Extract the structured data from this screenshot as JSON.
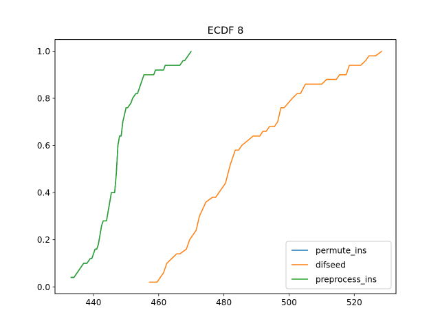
{
  "chart_data": {
    "type": "line",
    "title": "ECDF 8",
    "xlabel": "",
    "ylabel": "",
    "xlim": [
      428.2,
      532.8
    ],
    "ylim": [
      -0.029,
      1.049
    ],
    "xticks": [
      440,
      460,
      480,
      500,
      520
    ],
    "yticks": [
      0.0,
      0.2,
      0.4,
      0.6,
      0.8,
      1.0
    ],
    "ytick_labels": [
      "0.0",
      "0.2",
      "0.4",
      "0.6",
      "0.8",
      "1.0"
    ],
    "grid": false,
    "legend_position": "lower-right",
    "series": [
      {
        "name": "permute_ins",
        "color": "#1f77b4",
        "x": [
          433.0,
          434.0,
          435.0,
          436.0,
          437.0,
          438.0,
          439.0,
          439.5,
          440.5,
          441.0,
          441.5,
          442.0,
          442.5,
          443.0,
          444.0,
          445.0,
          445.5,
          446.5,
          447.0,
          447.5,
          448.0,
          448.5,
          449.0,
          450.0,
          450.5,
          451.5,
          452.0,
          453.0,
          453.5,
          454.0,
          455.5,
          456.5,
          457.0,
          458.0,
          458.5,
          459.0,
          459.5,
          460.5,
          461.5,
          462.0,
          464.5,
          465.0,
          466.5,
          467.5,
          468.0,
          469.0,
          470.0
        ],
        "y": [
          0.04,
          0.04,
          0.06,
          0.08,
          0.1,
          0.1,
          0.12,
          0.12,
          0.16,
          0.16,
          0.18,
          0.22,
          0.26,
          0.28,
          0.28,
          0.36,
          0.4,
          0.4,
          0.48,
          0.6,
          0.64,
          0.64,
          0.7,
          0.76,
          0.76,
          0.78,
          0.8,
          0.82,
          0.82,
          0.84,
          0.9,
          0.9,
          0.9,
          0.9,
          0.9,
          0.92,
          0.92,
          0.92,
          0.92,
          0.94,
          0.94,
          0.94,
          0.94,
          0.96,
          0.96,
          0.98,
          1.0
        ]
      },
      {
        "name": "difseed",
        "color": "#ff7f0e",
        "x": [
          457.0,
          458.0,
          459.5,
          460.5,
          461.5,
          462.5,
          465.5,
          466.5,
          468.5,
          469.5,
          470.5,
          471.5,
          472.5,
          474.5,
          476.5,
          477.5,
          478.5,
          479.5,
          480.5,
          482.0,
          483.5,
          484.5,
          485.5,
          489.0,
          490.0,
          491.0,
          492.0,
          493.0,
          494.0,
          495.5,
          496.5,
          497.5,
          498.5,
          501.0,
          502.5,
          503.5,
          505.0,
          506.0,
          508.5,
          509.5,
          510.0,
          511.5,
          513.0,
          514.5,
          515.5,
          516.5,
          517.5,
          518.5,
          519.0,
          520.5,
          522.0,
          523.5,
          524.5,
          525.5,
          526.5,
          527.5,
          528.5
        ],
        "y": [
          0.02,
          0.02,
          0.02,
          0.04,
          0.06,
          0.1,
          0.14,
          0.14,
          0.16,
          0.2,
          0.22,
          0.24,
          0.3,
          0.36,
          0.38,
          0.38,
          0.4,
          0.42,
          0.44,
          0.52,
          0.58,
          0.58,
          0.6,
          0.64,
          0.64,
          0.64,
          0.66,
          0.66,
          0.68,
          0.68,
          0.7,
          0.76,
          0.76,
          0.8,
          0.82,
          0.82,
          0.86,
          0.86,
          0.86,
          0.86,
          0.86,
          0.88,
          0.88,
          0.88,
          0.9,
          0.9,
          0.9,
          0.94,
          0.94,
          0.94,
          0.94,
          0.96,
          0.98,
          0.98,
          0.98,
          0.99,
          1.0
        ]
      },
      {
        "name": "preprocess_ins",
        "color": "#2ca02c",
        "x": [
          433.0,
          434.0,
          435.0,
          436.0,
          437.0,
          438.0,
          439.0,
          439.5,
          440.5,
          441.0,
          441.5,
          442.0,
          442.5,
          443.0,
          444.0,
          445.0,
          445.5,
          446.5,
          447.0,
          447.5,
          448.0,
          448.5,
          449.0,
          450.0,
          450.5,
          451.5,
          452.0,
          453.0,
          453.5,
          454.0,
          455.5,
          456.5,
          457.0,
          458.0,
          458.5,
          459.0,
          459.5,
          460.5,
          461.5,
          462.0,
          464.5,
          465.0,
          466.5,
          467.5,
          468.0,
          469.0,
          470.0
        ],
        "y": [
          0.04,
          0.04,
          0.06,
          0.08,
          0.1,
          0.1,
          0.12,
          0.12,
          0.16,
          0.16,
          0.18,
          0.22,
          0.26,
          0.28,
          0.28,
          0.36,
          0.4,
          0.4,
          0.48,
          0.6,
          0.64,
          0.64,
          0.7,
          0.76,
          0.76,
          0.78,
          0.8,
          0.82,
          0.82,
          0.84,
          0.9,
          0.9,
          0.9,
          0.9,
          0.9,
          0.92,
          0.92,
          0.92,
          0.92,
          0.94,
          0.94,
          0.94,
          0.94,
          0.96,
          0.96,
          0.98,
          1.0
        ]
      }
    ]
  }
}
